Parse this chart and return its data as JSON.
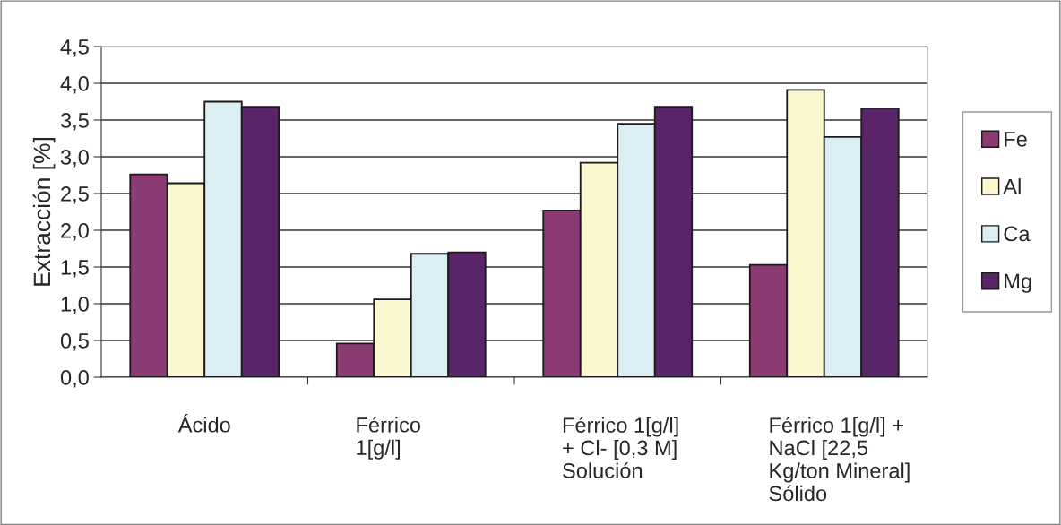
{
  "chart_data": {
    "type": "bar",
    "ylabel": "Extracción [%]",
    "categories": [
      "Ácido",
      "Férrico\n1[g/l]",
      "Férrico 1[g/l]\n+ Cl- [0,3 M]\nSolución",
      "Férrico 1[g/l] +\nNaCl [22,5\nKg/ton Mineral]\nSólido"
    ],
    "series": [
      {
        "name": "Fe",
        "color": "#8b3a72",
        "values": [
          2.76,
          0.46,
          2.27,
          1.53
        ]
      },
      {
        "name": "Al",
        "color": "#fbf7cf",
        "values": [
          2.64,
          1.06,
          2.92,
          3.91
        ]
      },
      {
        "name": "Ca",
        "color": "#daeef4",
        "values": [
          3.75,
          1.68,
          3.45,
          3.27
        ]
      },
      {
        "name": "Mg",
        "color": "#5a2468",
        "values": [
          3.68,
          1.7,
          3.68,
          3.66
        ]
      }
    ],
    "ylim": [
      0,
      4.5
    ],
    "yticks": [
      {
        "value": 0,
        "label": "0,0"
      },
      {
        "value": 0.5,
        "label": "0,5"
      },
      {
        "value": 1,
        "label": "1,0"
      },
      {
        "value": 1.5,
        "label": "1,5"
      },
      {
        "value": 2,
        "label": "2,0"
      },
      {
        "value": 2.5,
        "label": "2,5"
      },
      {
        "value": 3,
        "label": "3,0"
      },
      {
        "value": 3.5,
        "label": "3,5"
      },
      {
        "value": 4,
        "label": "4,0"
      },
      {
        "value": 4.5,
        "label": "4,5"
      }
    ],
    "grid": "y",
    "legend": "right"
  }
}
